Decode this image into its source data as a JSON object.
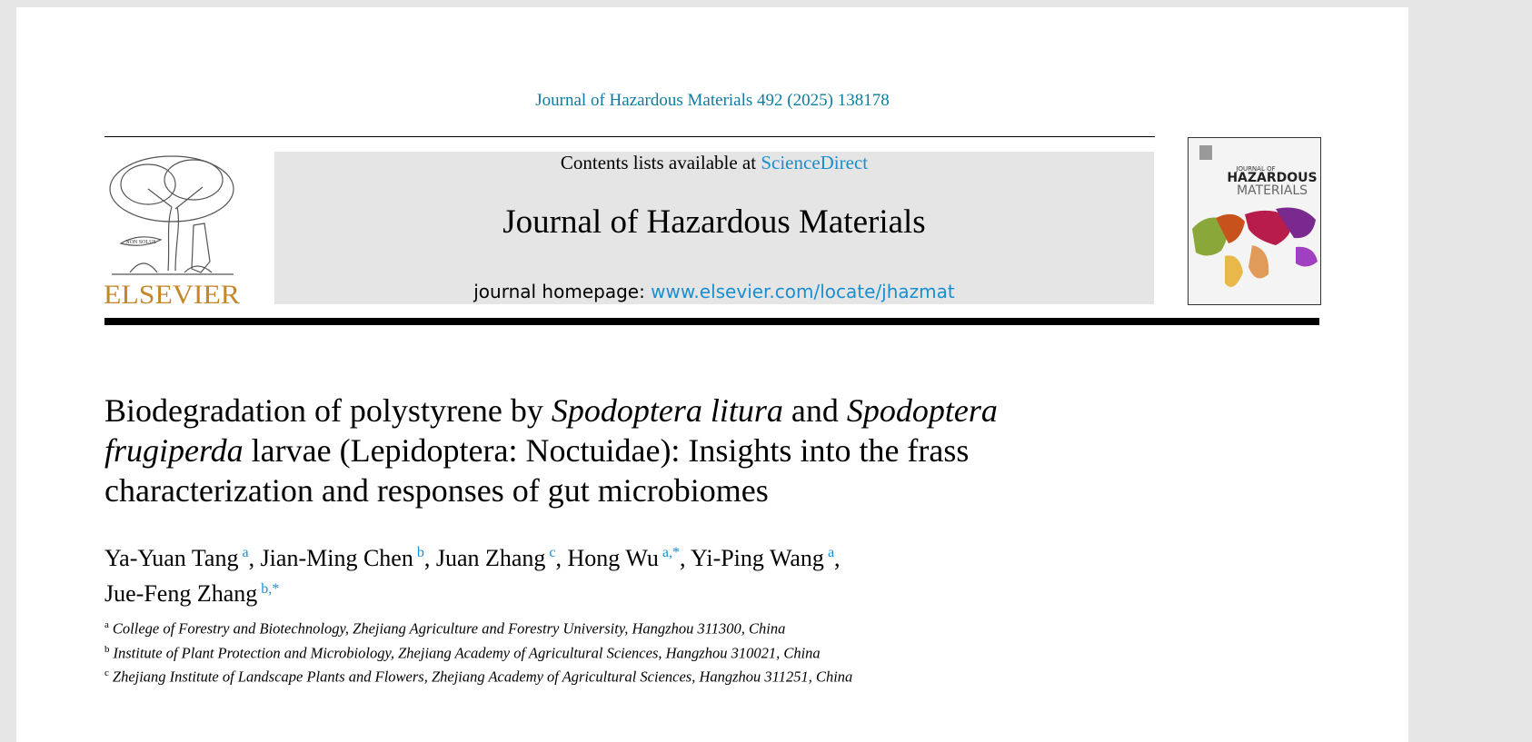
{
  "header": {
    "citation": "Journal of Hazardous Materials 492 (2025) 138178",
    "contents_prefix": "Contents lists available at",
    "contents_link": "ScienceDirect",
    "journal_name": "Journal of Hazardous Materials",
    "homepage_prefix": "journal homepage:",
    "homepage_link": "www.elsevier.com/locate/jhazmat",
    "publisher": "ELSEVIER",
    "publisher_motto": "NON SOLUS",
    "cover": {
      "line1": "JOURNAL OF",
      "line2": "HAZARDOUS",
      "line3": "MATERIALS"
    }
  },
  "title": {
    "segments": [
      {
        "text": "Biodegradation of polystyrene by ",
        "italic": false
      },
      {
        "text": "Spodoptera litura",
        "italic": true
      },
      {
        "text": " and ",
        "italic": false
      },
      {
        "text": "Spodoptera frugiperda",
        "italic": true
      },
      {
        "text": " larvae (Lepidoptera: Noctuidae): Insights into the frass characterization and responses of gut microbiomes",
        "italic": false
      }
    ]
  },
  "authors": [
    {
      "name": "Ya-Yuan Tang",
      "marks": "a",
      "separator": ","
    },
    {
      "name": "Jian-Ming Chen",
      "marks": "b",
      "separator": ","
    },
    {
      "name": "Juan Zhang",
      "marks": "c",
      "separator": ","
    },
    {
      "name": "Hong Wu",
      "marks": "a,*",
      "separator": ","
    },
    {
      "name": "Yi-Ping Wang",
      "marks": "a",
      "separator": ","
    },
    {
      "name": "Jue-Feng Zhang",
      "marks": "b,*"
    }
  ],
  "affiliations": [
    {
      "label": "a",
      "text": "College of Forestry and Biotechnology, Zhejiang Agriculture and Forestry University, Hangzhou 311300, China"
    },
    {
      "label": "b",
      "text": "Institute of Plant Protection and Microbiology, Zhejiang Academy of Agricultural Sciences, Hangzhou 310021, China"
    },
    {
      "label": "c",
      "text": "Zhejiang Institute of Landscape Plants and Flowers, Zhejiang Academy of Agricultural Sciences, Hangzhou 311251, China"
    }
  ]
}
